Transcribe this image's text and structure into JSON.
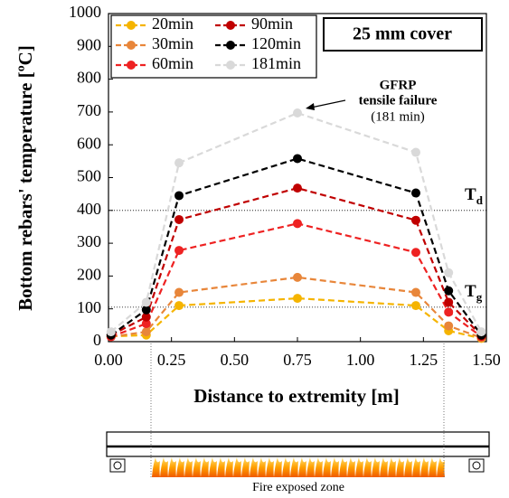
{
  "chart_data": {
    "type": "line",
    "y_label": "Bottom rebars' temperature [ºC]",
    "x_label": "Distance to extremity [m]",
    "box_label": "25 mm cover",
    "annotation": [
      "GFRP",
      "tensile failure",
      "(181 min)"
    ],
    "diagram_label": "Fire exposed zone",
    "x": [
      0.01,
      0.15,
      0.28,
      0.75,
      1.22,
      1.35,
      1.48
    ],
    "series": [
      {
        "name": "20min",
        "color": "#f5b400",
        "values": [
          16,
          20,
          110,
          132,
          110,
          33,
          10
        ]
      },
      {
        "name": "30min",
        "color": "#e8863a",
        "values": [
          15,
          30,
          150,
          196,
          150,
          48,
          12
        ]
      },
      {
        "name": "60min",
        "color": "#ee2222",
        "values": [
          15,
          55,
          278,
          360,
          272,
          90,
          15
        ]
      },
      {
        "name": "90min",
        "color": "#c00000",
        "values": [
          20,
          75,
          372,
          468,
          370,
          120,
          18
        ]
      },
      {
        "name": "120min",
        "color": "#000000",
        "values": [
          20,
          97,
          445,
          558,
          453,
          155,
          20
        ]
      },
      {
        "name": "181min",
        "color": "#d9d9d9",
        "values": [
          30,
          120,
          545,
          697,
          577,
          210,
          30
        ]
      }
    ],
    "reference_lines": [
      {
        "value": 400,
        "label": "T",
        "sub": "d"
      },
      {
        "value": 105,
        "label": "T",
        "sub": "g"
      }
    ],
    "xlim": [
      0,
      1.5
    ],
    "xticks": [
      {
        "value": 0,
        "label": "0.00"
      },
      {
        "value": 0.25,
        "label": "0.25"
      },
      {
        "value": 0.5,
        "label": "0.50"
      },
      {
        "value": 0.75,
        "label": "0.75"
      },
      {
        "value": 1,
        "label": "1.00"
      },
      {
        "value": 1.25,
        "label": "1.25"
      },
      {
        "value": 1.5,
        "label": "1.50"
      }
    ],
    "ylim": [
      0,
      1000
    ],
    "yticks": [
      0,
      100,
      200,
      300,
      400,
      500,
      600,
      700,
      800,
      900,
      1000
    ]
  }
}
